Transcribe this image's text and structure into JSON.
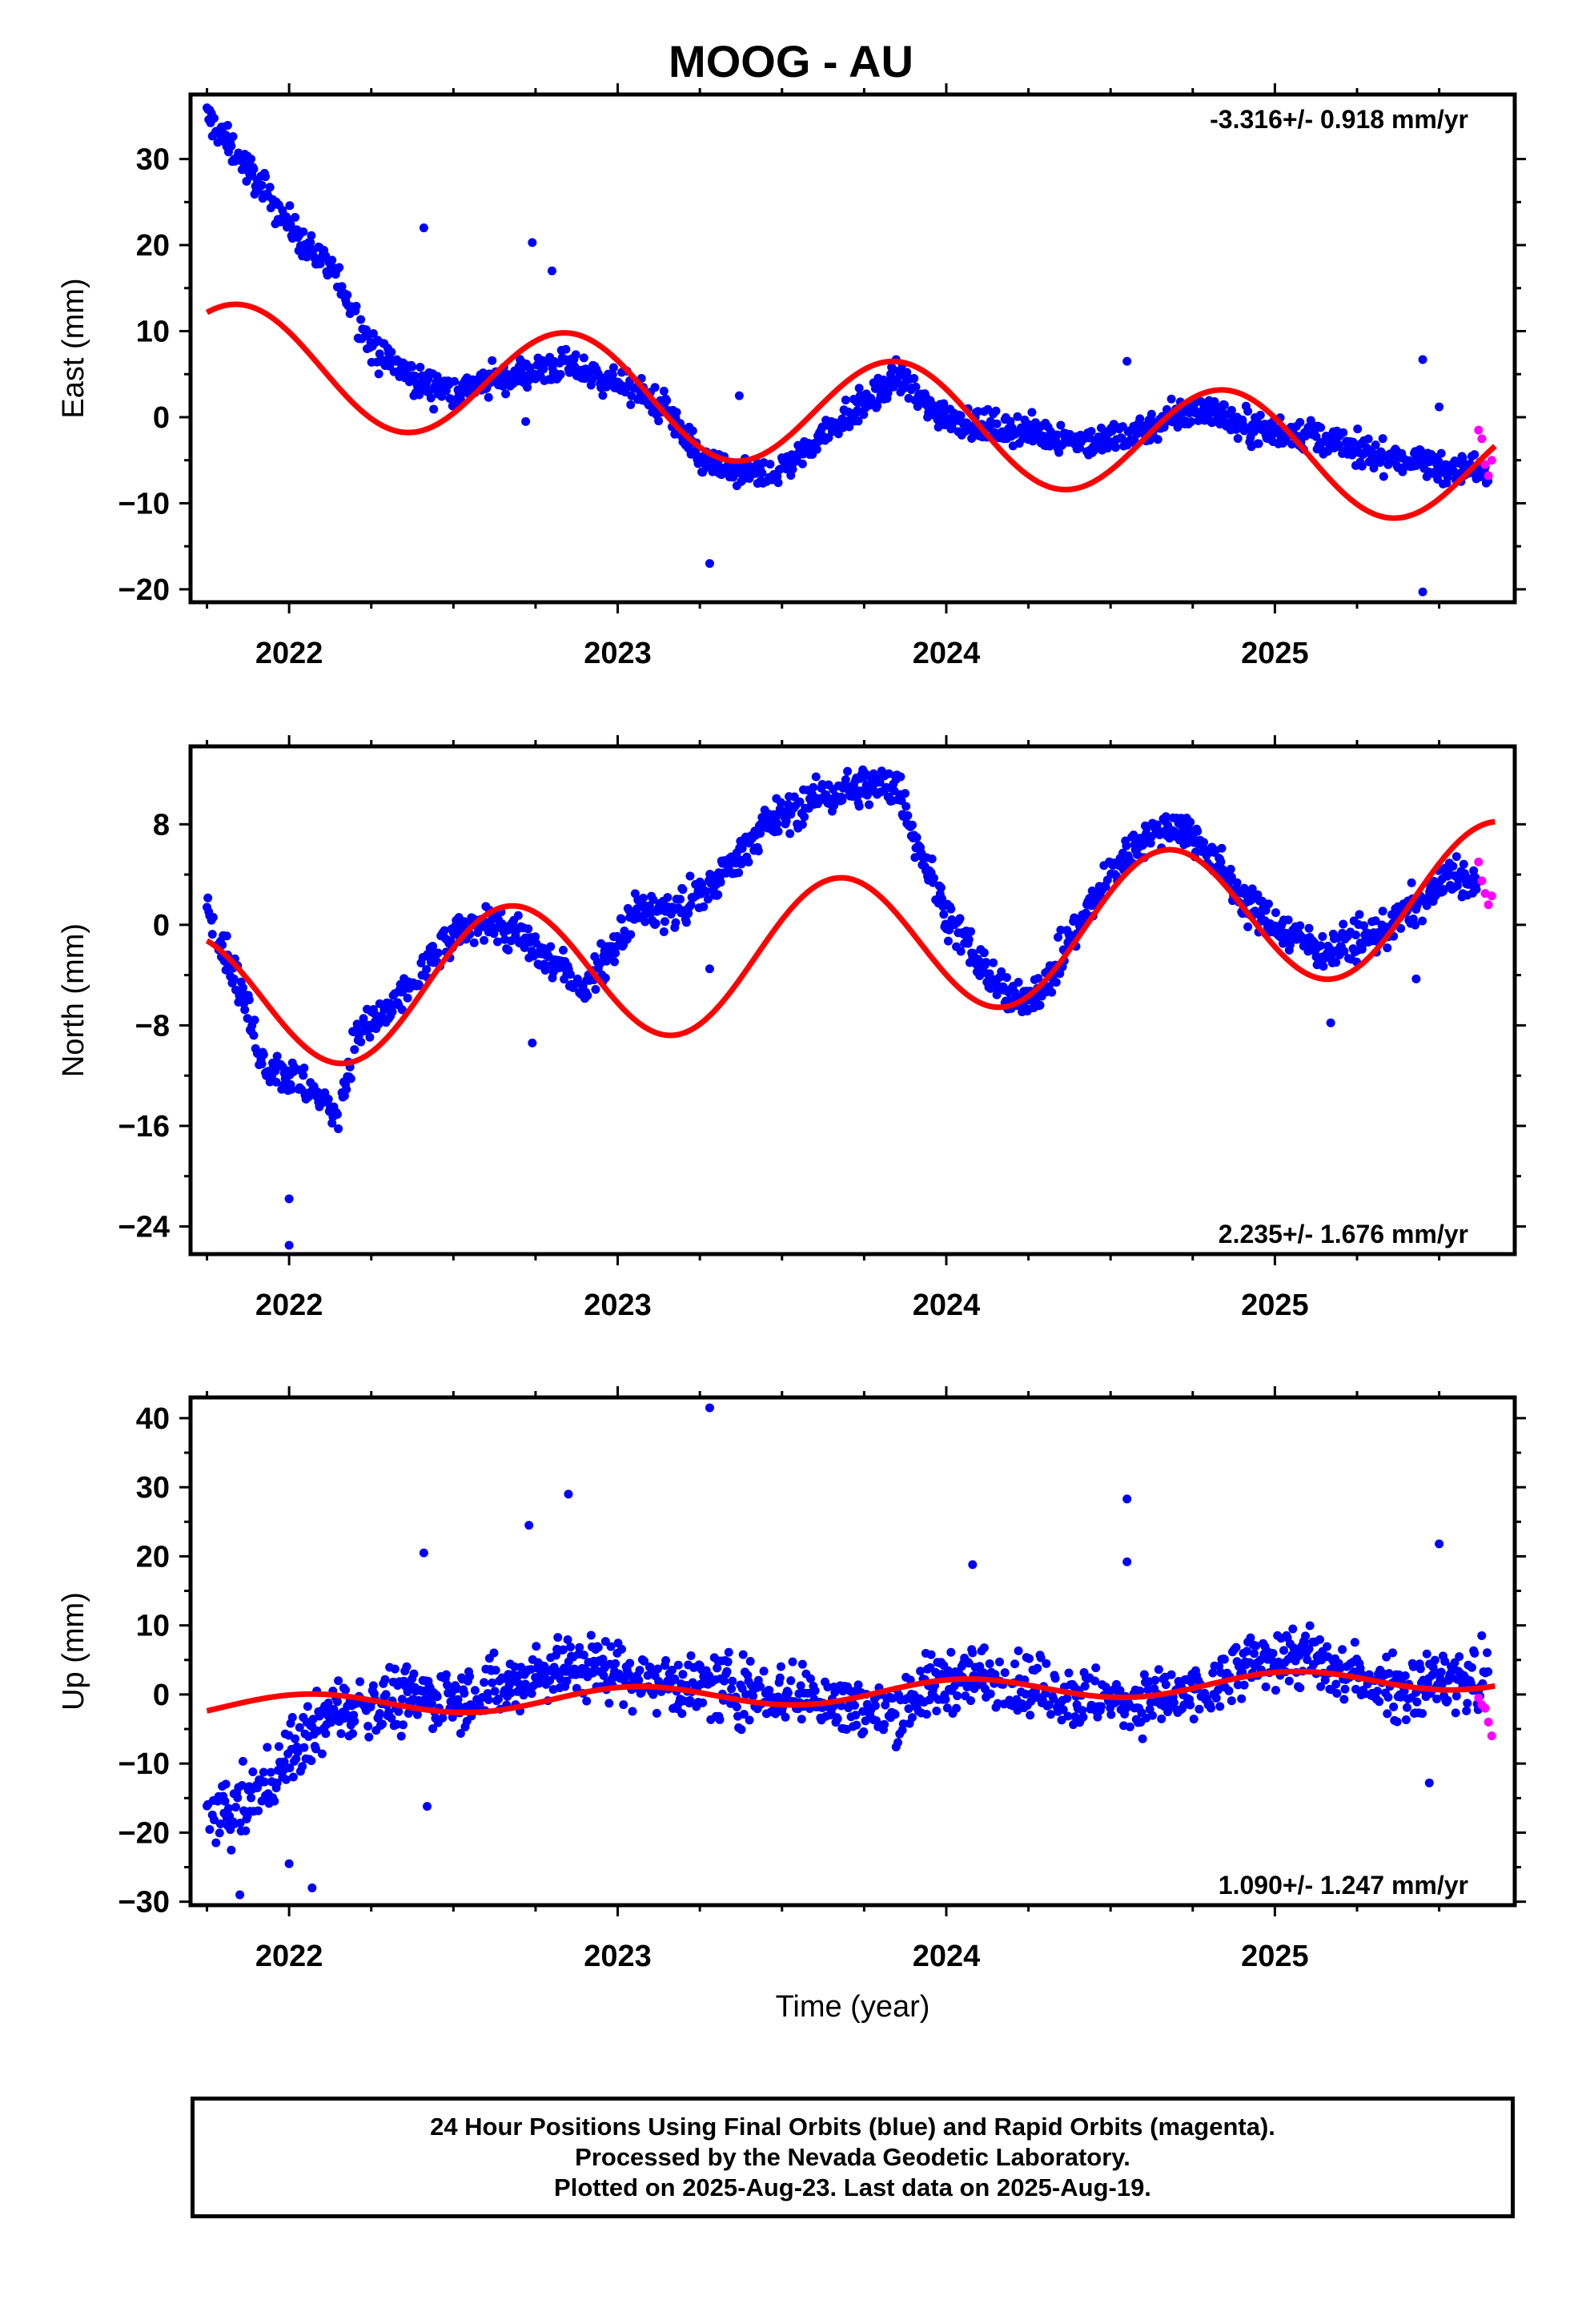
{
  "title": "MOOG - AU",
  "xlabel": "Time (year)",
  "footer": {
    "line1": "24 Hour Positions Using Final Orbits (blue) and Rapid Orbits (magenta).",
    "line2": "Processed by the Nevada Geodetic Laboratory.",
    "line3": "Plotted on 2025-Aug-23. Last data on 2025-Aug-19."
  },
  "colors": {
    "final_orbits": "#0000ff",
    "rapid_orbits": "#ff00ff",
    "model": "#ff0000"
  },
  "chart_data": [
    {
      "type": "scatter",
      "id": "east",
      "ylabel": "East (mm)",
      "rate_text": "-3.316+/- 0.918 mm/yr",
      "rate_position": "top-right",
      "xlim": [
        2021.7,
        2025.73
      ],
      "ylim": [
        -21.5,
        37.5
      ],
      "xticks": [
        2022,
        2023,
        2024,
        2025
      ],
      "yticks": [
        -20,
        -10,
        0,
        10,
        20,
        30
      ],
      "ytick_labels": [
        "−20",
        "−10",
        "0",
        "10",
        "20",
        "30"
      ],
      "observed_trend": [
        [
          2021.75,
          35
        ],
        [
          2021.85,
          30
        ],
        [
          2021.95,
          25
        ],
        [
          2022.05,
          20
        ],
        [
          2022.15,
          16
        ],
        [
          2022.25,
          8
        ],
        [
          2022.4,
          4
        ],
        [
          2022.5,
          3
        ],
        [
          2022.6,
          4
        ],
        [
          2022.7,
          5
        ],
        [
          2022.85,
          6
        ],
        [
          2023.0,
          4
        ],
        [
          2023.15,
          1
        ],
        [
          2023.25,
          -5
        ],
        [
          2023.4,
          -7
        ],
        [
          2023.5,
          -6
        ],
        [
          2023.65,
          -1
        ],
        [
          2023.8,
          3
        ],
        [
          2023.85,
          5
        ],
        [
          2023.95,
          1
        ],
        [
          2024.1,
          -1
        ],
        [
          2024.3,
          -2
        ],
        [
          2024.45,
          -3
        ],
        [
          2024.55,
          -2
        ],
        [
          2024.7,
          0
        ],
        [
          2024.8,
          1
        ],
        [
          2024.9,
          -1
        ],
        [
          2025.1,
          -2
        ],
        [
          2025.25,
          -4
        ],
        [
          2025.4,
          -5
        ],
        [
          2025.55,
          -6
        ],
        [
          2025.65,
          -6
        ]
      ],
      "outliers": [
        [
          2022.41,
          22
        ],
        [
          2022.74,
          20.3
        ],
        [
          2022.8,
          17
        ],
        [
          2022.72,
          -0.5
        ],
        [
          2023.28,
          -17
        ],
        [
          2024.55,
          6.5
        ],
        [
          2025.45,
          6.7
        ],
        [
          2025.45,
          -20.3
        ],
        [
          2025.5,
          1.2
        ],
        [
          2023.37,
          2.5
        ]
      ],
      "rapid_points": [
        [
          2025.62,
          -1.5
        ],
        [
          2025.63,
          -2.5
        ],
        [
          2025.64,
          -5.5
        ],
        [
          2025.65,
          -6.8
        ],
        [
          2025.66,
          -5.0
        ]
      ],
      "model": {
        "intercept": 6,
        "rate_mm_yr": -3.316,
        "t0": 2022.0,
        "annual_amplitude": 6.6,
        "annual_peak": 2021.85
      }
    },
    {
      "type": "scatter",
      "id": "north",
      "ylabel": "North (mm)",
      "rate_text": "2.235+/- 1.676 mm/yr",
      "rate_position": "bottom-right",
      "xlim": [
        2021.7,
        2025.73
      ],
      "ylim": [
        -26.2,
        14.2
      ],
      "xticks": [
        2022,
        2023,
        2024,
        2025
      ],
      "yticks": [
        -24,
        -16,
        -8,
        0,
        8
      ],
      "ytick_labels": [
        "−24",
        "−16",
        "−8",
        "0",
        "8"
      ],
      "observed_trend": [
        [
          2021.75,
          1.5
        ],
        [
          2021.85,
          -5
        ],
        [
          2021.92,
          -11
        ],
        [
          2022.0,
          -12
        ],
        [
          2022.1,
          -14
        ],
        [
          2022.15,
          -15
        ],
        [
          2022.2,
          -9
        ],
        [
          2022.3,
          -7
        ],
        [
          2022.4,
          -4
        ],
        [
          2022.5,
          -1
        ],
        [
          2022.6,
          0.5
        ],
        [
          2022.7,
          -1
        ],
        [
          2022.8,
          -3
        ],
        [
          2022.9,
          -5
        ],
        [
          2022.95,
          -3
        ],
        [
          2023.05,
          1
        ],
        [
          2023.15,
          1
        ],
        [
          2023.25,
          2
        ],
        [
          2023.35,
          5
        ],
        [
          2023.45,
          8
        ],
        [
          2023.6,
          10
        ],
        [
          2023.75,
          11
        ],
        [
          2023.85,
          11
        ],
        [
          2023.92,
          6
        ],
        [
          2024.0,
          1
        ],
        [
          2024.1,
          -3
        ],
        [
          2024.2,
          -6
        ],
        [
          2024.3,
          -5
        ],
        [
          2024.4,
          0
        ],
        [
          2024.5,
          4
        ],
        [
          2024.6,
          7
        ],
        [
          2024.7,
          8
        ],
        [
          2024.8,
          6
        ],
        [
          2024.9,
          2
        ],
        [
          2025.0,
          0
        ],
        [
          2025.15,
          -2
        ],
        [
          2025.3,
          -1
        ],
        [
          2025.45,
          2
        ],
        [
          2025.55,
          4
        ],
        [
          2025.62,
          3
        ]
      ],
      "outliers": [
        [
          2022.0,
          -21.8
        ],
        [
          2022.0,
          -25.5
        ],
        [
          2022.74,
          -9.4
        ],
        [
          2023.28,
          -3.5
        ],
        [
          2025.17,
          -7.8
        ],
        [
          2025.43,
          -4.3
        ]
      ],
      "rapid_points": [
        [
          2025.62,
          5.0
        ],
        [
          2025.63,
          3.5
        ],
        [
          2025.64,
          2.5
        ],
        [
          2025.65,
          1.6
        ],
        [
          2025.66,
          2.3
        ]
      ],
      "model": {
        "intercept": -5.7,
        "rate_mm_yr": 2.235,
        "t0": 2022.0,
        "annual_amplitude": 5.7,
        "annual_peak": 2022.67
      }
    },
    {
      "type": "scatter",
      "id": "up",
      "ylabel": "Up (mm)",
      "rate_text": "1.090+/- 1.247 mm/yr",
      "rate_position": "bottom-right",
      "xlim": [
        2021.7,
        2025.73
      ],
      "ylim": [
        -30.5,
        43
      ],
      "xticks": [
        2022,
        2023,
        2024,
        2025
      ],
      "yticks": [
        -30,
        -20,
        -10,
        0,
        10,
        20,
        30,
        40
      ],
      "ytick_labels": [
        "−30",
        "−20",
        "−10",
        "0",
        "10",
        "20",
        "30",
        "40"
      ],
      "observed_trend": [
        [
          2021.75,
          -18
        ],
        [
          2021.85,
          -17
        ],
        [
          2021.95,
          -12
        ],
        [
          2022.05,
          -6
        ],
        [
          2022.15,
          -2
        ],
        [
          2022.3,
          -1
        ],
        [
          2022.5,
          0
        ],
        [
          2022.65,
          1
        ],
        [
          2022.8,
          4
        ],
        [
          2022.95,
          4
        ],
        [
          2023.1,
          2
        ],
        [
          2023.3,
          1
        ],
        [
          2023.5,
          0
        ],
        [
          2023.65,
          -1
        ],
        [
          2023.8,
          -3
        ],
        [
          2023.95,
          1
        ],
        [
          2024.05,
          3
        ],
        [
          2024.2,
          2
        ],
        [
          2024.35,
          0
        ],
        [
          2024.5,
          -1
        ],
        [
          2024.65,
          -1
        ],
        [
          2024.8,
          0
        ],
        [
          2024.95,
          5
        ],
        [
          2025.05,
          6
        ],
        [
          2025.2,
          3
        ],
        [
          2025.4,
          1
        ],
        [
          2025.55,
          2
        ],
        [
          2025.65,
          2
        ]
      ],
      "outliers": [
        [
          2023.28,
          41.5
        ],
        [
          2022.85,
          29
        ],
        [
          2022.73,
          24.5
        ],
        [
          2024.55,
          28.3
        ],
        [
          2022.41,
          20.5
        ],
        [
          2024.55,
          19.2
        ],
        [
          2025.5,
          21.8
        ],
        [
          2021.85,
          -29
        ],
        [
          2022.0,
          -24.5
        ],
        [
          2022.42,
          -16.2
        ],
        [
          2025.47,
          -12.8
        ],
        [
          2022.07,
          -28
        ],
        [
          2024.08,
          18.8
        ]
      ],
      "rapid_points": [
        [
          2025.62,
          -0.5
        ],
        [
          2025.63,
          -1.5
        ],
        [
          2025.64,
          -2
        ],
        [
          2025.65,
          -4
        ],
        [
          2025.66,
          -6
        ]
      ],
      "model": {
        "intercept": -1.6,
        "rate_mm_yr": 1.09,
        "t0": 2022.0,
        "annual_amplitude": 1.6,
        "annual_peak": 2023.05
      }
    }
  ]
}
